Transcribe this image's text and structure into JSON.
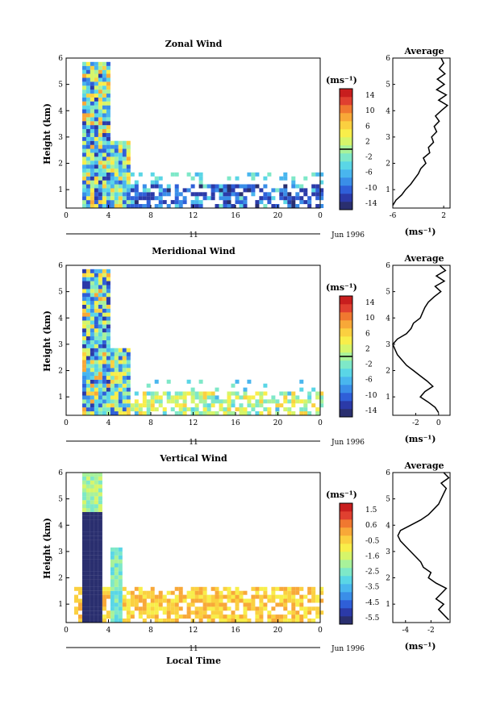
{
  "colors": {
    "cbar_stops": [
      "#2a2f6f",
      "#2b3aa8",
      "#2f5fd8",
      "#3a8ee8",
      "#49b6ee",
      "#5ad6e6",
      "#7ee8c8",
      "#a8f29a",
      "#d6f56a",
      "#f8ee4a",
      "#fbd040",
      "#f8a838",
      "#f07830",
      "#e04030",
      "#c81e1e"
    ],
    "line": "#000000"
  },
  "chart_data": [
    {
      "type": "heatmap",
      "title": "Zonal Wind",
      "xlabel": "",
      "ylabel": "Height (km)",
      "xlim": [
        0,
        24
      ],
      "ylim": [
        0.3,
        6
      ],
      "x_ticks": [
        "0",
        "4",
        "8",
        "12",
        "16",
        "20",
        "0"
      ],
      "y_ticks": [
        "1",
        "2",
        "3",
        "4",
        "5",
        "6"
      ],
      "date_bar_label": "11",
      "date_label": "Jun 1996",
      "colorbar": {
        "unit": "(ms⁻¹)",
        "ticks": [
          "14",
          "10",
          "6",
          "2",
          "-2",
          "-6",
          "-10",
          "-14"
        ],
        "zero_line": 0
      },
      "average_profile": {
        "title": "Average",
        "xlabel": "(ms⁻¹)",
        "x_ticks": [
          "-6",
          "2"
        ],
        "xlim": [
          -6,
          3
        ],
        "y_ticks": [
          "1",
          "2",
          "3",
          "4",
          "5",
          "6"
        ],
        "points": [
          [
            -6,
            0.4
          ],
          [
            -5.5,
            0.6
          ],
          [
            -4.6,
            0.8
          ],
          [
            -4,
            1.0
          ],
          [
            -3.2,
            1.2
          ],
          [
            -2.6,
            1.4
          ],
          [
            -2,
            1.6
          ],
          [
            -1.6,
            1.8
          ],
          [
            -0.8,
            2.0
          ],
          [
            -1.2,
            2.2
          ],
          [
            -0.2,
            2.4
          ],
          [
            -0.4,
            2.6
          ],
          [
            0.4,
            2.8
          ],
          [
            0.1,
            3.0
          ],
          [
            0.9,
            3.2
          ],
          [
            0.5,
            3.4
          ],
          [
            1.3,
            3.6
          ],
          [
            0.7,
            3.8
          ],
          [
            1.6,
            4.0
          ],
          [
            2.6,
            4.2
          ],
          [
            1.2,
            4.4
          ],
          [
            2.4,
            4.6
          ],
          [
            0.9,
            4.8
          ],
          [
            2.1,
            5.0
          ],
          [
            1.0,
            5.2
          ],
          [
            2.2,
            5.4
          ],
          [
            1.3,
            5.6
          ],
          [
            2.0,
            5.8
          ],
          [
            1.6,
            6.0
          ]
        ]
      }
    },
    {
      "type": "heatmap",
      "title": "Meridional Wind",
      "xlabel": "",
      "ylabel": "Height (km)",
      "xlim": [
        0,
        24
      ],
      "ylim": [
        0.3,
        6
      ],
      "x_ticks": [
        "0",
        "4",
        "8",
        "12",
        "16",
        "20",
        "0"
      ],
      "y_ticks": [
        "1",
        "2",
        "3",
        "4",
        "5",
        "6"
      ],
      "date_bar_label": "11",
      "date_label": "Jun 1996",
      "colorbar": {
        "unit": "(ms⁻¹)",
        "ticks": [
          "14",
          "10",
          "6",
          "2",
          "-2",
          "-6",
          "-10",
          "-14"
        ],
        "zero_line": 0
      },
      "average_profile": {
        "title": "Average",
        "xlabel": "(ms⁻¹)",
        "x_ticks": [
          "-2",
          "0"
        ],
        "xlim": [
          -4,
          1
        ],
        "y_ticks": [
          "1",
          "2",
          "3",
          "4",
          "5",
          "6"
        ],
        "points": [
          [
            0,
            0.4
          ],
          [
            -0.3,
            0.6
          ],
          [
            -0.9,
            0.8
          ],
          [
            -1.6,
            1.0
          ],
          [
            -1.2,
            1.2
          ],
          [
            -0.5,
            1.4
          ],
          [
            -1.0,
            1.6
          ],
          [
            -1.6,
            1.8
          ],
          [
            -2.2,
            2.0
          ],
          [
            -2.8,
            2.2
          ],
          [
            -3.2,
            2.4
          ],
          [
            -3.6,
            2.6
          ],
          [
            -3.8,
            2.8
          ],
          [
            -4.0,
            3.0
          ],
          [
            -3.6,
            3.2
          ],
          [
            -2.8,
            3.4
          ],
          [
            -2.4,
            3.6
          ],
          [
            -2.2,
            3.8
          ],
          [
            -1.6,
            4.0
          ],
          [
            -1.4,
            4.2
          ],
          [
            -1.2,
            4.4
          ],
          [
            -0.9,
            4.6
          ],
          [
            -0.4,
            4.8
          ],
          [
            0.2,
            5.0
          ],
          [
            -0.3,
            5.2
          ],
          [
            0.5,
            5.4
          ],
          [
            -0.2,
            5.6
          ],
          [
            0.6,
            5.8
          ],
          [
            0.1,
            6.0
          ]
        ]
      }
    },
    {
      "type": "heatmap",
      "title": "Vertical Wind",
      "xlabel": "Local Time",
      "ylabel": "Height (km)",
      "xlim": [
        0,
        24
      ],
      "ylim": [
        0.3,
        6
      ],
      "x_ticks": [
        "0",
        "4",
        "8",
        "12",
        "16",
        "20",
        "0"
      ],
      "y_ticks": [
        "1",
        "2",
        "3",
        "4",
        "5",
        "6"
      ],
      "date_bar_label": "11",
      "date_label": "Jun 1996",
      "colorbar": {
        "unit": "(ms⁻¹)",
        "ticks": [
          "1.5",
          "0.6",
          "-0.5",
          "-1.6",
          "-2.5",
          "-3.5",
          "-4.5",
          "-5.5"
        ],
        "zero_line": null
      },
      "average_profile": {
        "title": "Average",
        "xlabel": "(ms⁻¹)",
        "x_ticks": [
          "-4",
          "-2"
        ],
        "xlim": [
          -5,
          -0.5
        ],
        "y_ticks": [
          "1",
          "2",
          "3",
          "4",
          "5",
          "6"
        ],
        "points": [
          [
            -0.6,
            0.4
          ],
          [
            -1.0,
            0.6
          ],
          [
            -1.4,
            0.8
          ],
          [
            -1.0,
            1.0
          ],
          [
            -1.6,
            1.2
          ],
          [
            -1.2,
            1.4
          ],
          [
            -0.8,
            1.6
          ],
          [
            -1.6,
            1.8
          ],
          [
            -2.2,
            2.0
          ],
          [
            -2.0,
            2.2
          ],
          [
            -2.6,
            2.4
          ],
          [
            -2.8,
            2.6
          ],
          [
            -3.2,
            2.8
          ],
          [
            -3.6,
            3.0
          ],
          [
            -4.0,
            3.2
          ],
          [
            -4.4,
            3.4
          ],
          [
            -4.6,
            3.6
          ],
          [
            -4.4,
            3.8
          ],
          [
            -3.6,
            4.0
          ],
          [
            -2.8,
            4.2
          ],
          [
            -2.2,
            4.4
          ],
          [
            -1.8,
            4.6
          ],
          [
            -1.4,
            4.8
          ],
          [
            -1.2,
            5.0
          ],
          [
            -1.0,
            5.2
          ],
          [
            -0.8,
            5.4
          ],
          [
            -1.2,
            5.6
          ],
          [
            -0.6,
            5.8
          ],
          [
            -1.0,
            6.0
          ]
        ]
      }
    }
  ]
}
